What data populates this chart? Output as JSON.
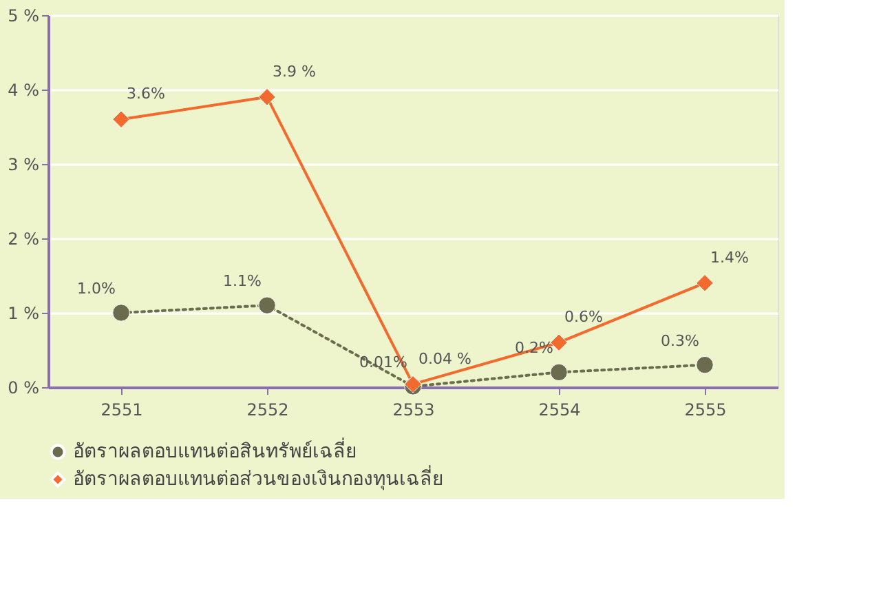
{
  "chart_data": {
    "type": "line",
    "categories": [
      "2551",
      "2552",
      "2553",
      "2554",
      "2555"
    ],
    "series": [
      {
        "name": "อัตราผลตอบแทนต่อสินทรัพย์เฉลี่ย",
        "color": "#6b6b4e",
        "values": [
          1.0,
          1.1,
          0.01,
          0.2,
          0.3
        ],
        "value_labels": [
          "1.0%",
          "1.1%",
          "0.01%",
          "0.2%",
          "0.3%"
        ],
        "marker": "circle",
        "line_style": "dotted"
      },
      {
        "name": "อัตราผลตอบแทนต่อส่วนของเงินกองทุนเฉลี่ย",
        "color": "#f26a2e",
        "values": [
          3.6,
          3.9,
          0.04,
          0.6,
          1.4
        ],
        "value_labels": [
          "3.6%",
          "3.9 %",
          "0.04 %",
          "0.6%",
          "1.4%"
        ],
        "marker": "diamond",
        "line_style": "solid"
      }
    ],
    "ylim": [
      0,
      5
    ],
    "yticks": [
      {
        "value": 0,
        "label": "0 %"
      },
      {
        "value": 1,
        "label": "1 %"
      },
      {
        "value": 2,
        "label": "2 %"
      },
      {
        "value": 3,
        "label": "3 %"
      },
      {
        "value": 4,
        "label": "4 %"
      },
      {
        "value": 5,
        "label": "5 %"
      }
    ],
    "grid": "y",
    "legend": "bottom"
  }
}
